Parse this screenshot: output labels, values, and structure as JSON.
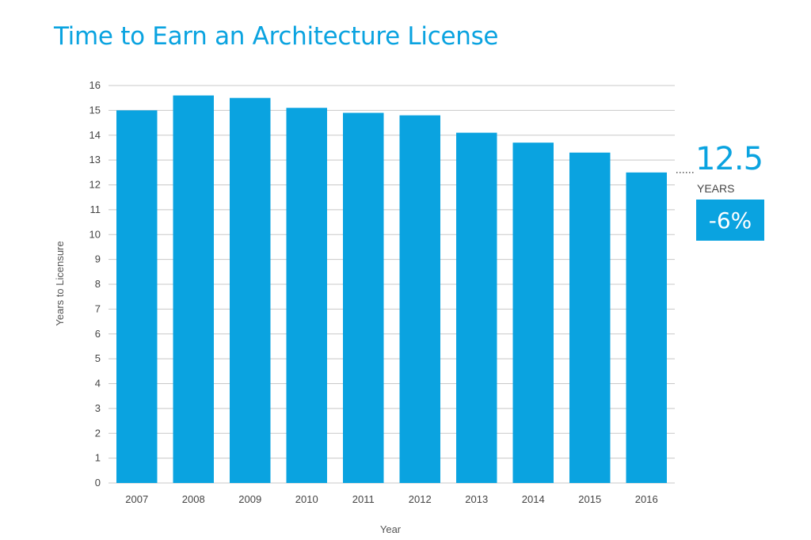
{
  "chart_data": {
    "type": "bar",
    "title": "Time to Earn an Architecture License",
    "xlabel": "Year",
    "ylabel": "Years to Licensure",
    "categories": [
      "2007",
      "2008",
      "2009",
      "2010",
      "2011",
      "2012",
      "2013",
      "2014",
      "2015",
      "2016"
    ],
    "values": [
      15.0,
      15.6,
      15.5,
      15.1,
      14.9,
      14.8,
      14.1,
      13.7,
      13.3,
      12.5
    ],
    "ylim": [
      0,
      16
    ],
    "yticks": [
      "0",
      "1",
      "2",
      "3",
      "4",
      "5",
      "6",
      "7",
      "8",
      "9",
      "10",
      "11",
      "12",
      "13",
      "14",
      "15",
      "16"
    ],
    "grid": true,
    "bar_color": "#0aa3e0",
    "callout": {
      "value": "12.5",
      "unit": "YEARS",
      "change": "-6%"
    }
  }
}
